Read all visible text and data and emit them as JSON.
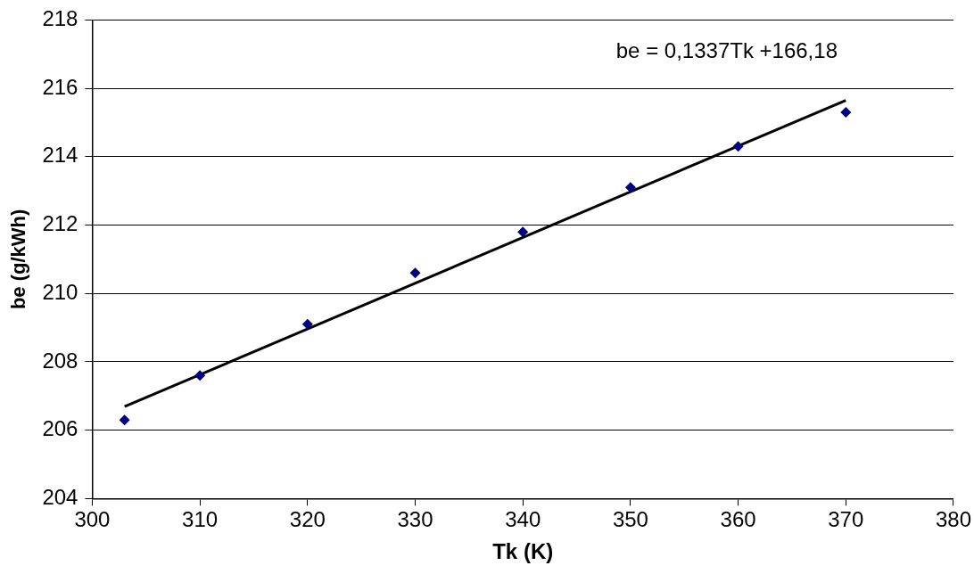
{
  "chart_data": {
    "type": "scatter",
    "xlabel": "Tk (K)",
    "ylabel": "be (g/kWh)",
    "annotations": [
      "be = 0,1337Tk +166,18"
    ],
    "xlim": [
      300,
      380
    ],
    "xticks": [
      300,
      310,
      320,
      330,
      340,
      350,
      360,
      370,
      380
    ],
    "ylim": [
      204,
      218
    ],
    "yticks": [
      204,
      206,
      208,
      210,
      212,
      214,
      216,
      218
    ],
    "grid": "y",
    "legend": false,
    "marker": "diamond",
    "series": [
      {
        "color": "#000080",
        "x": [
          303,
          310,
          320,
          330,
          340,
          350,
          360,
          370
        ],
        "values": [
          206.3,
          207.6,
          209.1,
          210.6,
          211.8,
          213.1,
          214.3,
          215.3
        ]
      },
      {
        "type": "line",
        "color": "#000000",
        "marker": "none",
        "line_style": "solid",
        "x": [
          303,
          370
        ],
        "values": [
          206.69,
          215.65
        ]
      }
    ]
  }
}
